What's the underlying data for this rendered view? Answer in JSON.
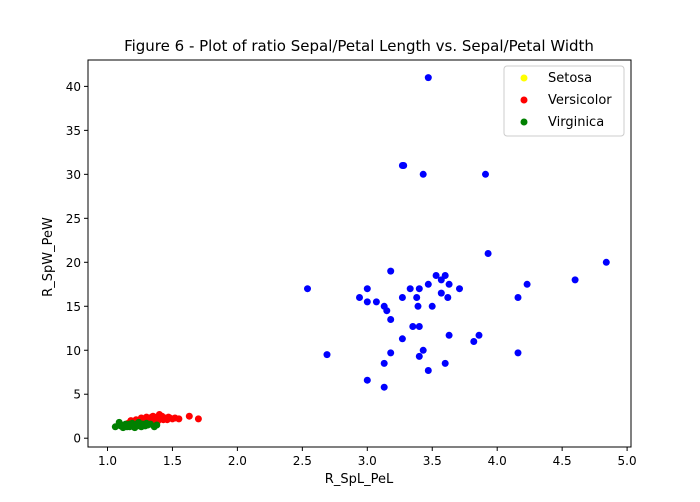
{
  "colors": {
    "setosa": "#0000ff",
    "versicolor": "#ff0000",
    "virginica": "#008000",
    "axis": "#000000",
    "legend_border": "#cccccc"
  },
  "chart_data": {
    "type": "scatter",
    "title": "Figure 6 - Plot of ratio Sepal/Petal Length vs. Sepal/Petal Width",
    "xlabel": "R_SpL_PeL",
    "ylabel": "R_SpW_PeW",
    "xlim": [
      0.85,
      5.03
    ],
    "ylim": [
      -1.0,
      43.0
    ],
    "xticks": [
      1.0,
      1.5,
      2.0,
      2.5,
      3.0,
      3.5,
      4.0,
      4.5,
      5.0
    ],
    "xtick_labels": [
      "1.0",
      "1.5",
      "2.0",
      "2.5",
      "3.0",
      "3.5",
      "4.0",
      "4.5",
      "5.0"
    ],
    "yticks": [
      0,
      5,
      10,
      15,
      20,
      25,
      30,
      35,
      40
    ],
    "ytick_labels": [
      "0",
      "5",
      "10",
      "15",
      "20",
      "25",
      "30",
      "35",
      "40"
    ],
    "grid": false,
    "legend_position": "top-right",
    "legend_marker_colors": [
      "#ffff00",
      "#ff0000",
      "#008000"
    ],
    "series": [
      {
        "name": "Setosa",
        "color": "#0000ff",
        "points": [
          [
            3.47,
            41.0
          ],
          [
            3.27,
            31.0
          ],
          [
            3.28,
            31.0
          ],
          [
            3.43,
            30.0
          ],
          [
            3.91,
            30.0
          ],
          [
            3.93,
            21.0
          ],
          [
            4.84,
            20.0
          ],
          [
            3.18,
            19.0
          ],
          [
            4.6,
            18.0
          ],
          [
            3.53,
            18.5
          ],
          [
            3.57,
            18.0
          ],
          [
            3.6,
            18.5
          ],
          [
            2.54,
            17.0
          ],
          [
            3.0,
            17.0
          ],
          [
            3.33,
            17.0
          ],
          [
            3.4,
            17.0
          ],
          [
            3.47,
            17.5
          ],
          [
            3.63,
            17.5
          ],
          [
            3.71,
            17.0
          ],
          [
            4.23,
            17.5
          ],
          [
            2.94,
            16.0
          ],
          [
            3.27,
            16.0
          ],
          [
            3.38,
            16.0
          ],
          [
            3.57,
            16.5
          ],
          [
            3.62,
            16.0
          ],
          [
            4.16,
            16.0
          ],
          [
            3.0,
            15.5
          ],
          [
            3.07,
            15.5
          ],
          [
            3.13,
            15.0
          ],
          [
            3.39,
            15.0
          ],
          [
            3.5,
            15.0
          ],
          [
            3.15,
            14.5
          ],
          [
            3.18,
            13.5
          ],
          [
            3.35,
            12.7
          ],
          [
            3.4,
            12.7
          ],
          [
            3.27,
            11.3
          ],
          [
            3.63,
            11.7
          ],
          [
            3.86,
            11.7
          ],
          [
            3.82,
            11.0
          ],
          [
            2.69,
            9.5
          ],
          [
            3.18,
            9.7
          ],
          [
            3.43,
            10.0
          ],
          [
            3.4,
            9.3
          ],
          [
            4.16,
            9.7
          ],
          [
            3.13,
            8.5
          ],
          [
            3.6,
            8.5
          ],
          [
            3.47,
            7.7
          ],
          [
            3.0,
            6.6
          ],
          [
            3.13,
            5.8
          ]
        ]
      },
      {
        "name": "Versicolor",
        "color": "#ff0000",
        "points": [
          [
            1.7,
            2.2
          ],
          [
            1.63,
            2.5
          ],
          [
            1.55,
            2.2
          ],
          [
            1.52,
            2.3
          ],
          [
            1.5,
            2.2
          ],
          [
            1.48,
            2.3
          ],
          [
            1.46,
            2.1
          ],
          [
            1.45,
            2.3
          ],
          [
            1.42,
            2.5
          ],
          [
            1.41,
            2.2
          ],
          [
            1.4,
            2.7
          ],
          [
            1.39,
            2.0
          ],
          [
            1.38,
            2.4
          ],
          [
            1.37,
            1.9
          ],
          [
            1.36,
            2.2
          ],
          [
            1.35,
            2.5
          ],
          [
            1.34,
            2.0
          ],
          [
            1.33,
            2.3
          ],
          [
            1.32,
            1.8
          ],
          [
            1.31,
            2.2
          ],
          [
            1.3,
            2.4
          ],
          [
            1.29,
            2.0
          ],
          [
            1.28,
            1.7
          ],
          [
            1.27,
            2.1
          ],
          [
            1.26,
            2.3
          ],
          [
            1.25,
            2.0
          ],
          [
            1.23,
            1.8
          ],
          [
            1.22,
            2.1
          ],
          [
            1.2,
            1.9
          ],
          [
            1.18,
            2.0
          ],
          [
            1.16,
            1.7
          ],
          [
            1.43,
            2.1
          ],
          [
            1.47,
            2.4
          ],
          [
            1.34,
            2.4
          ],
          [
            1.28,
            2.2
          ]
        ]
      },
      {
        "name": "Virginica",
        "color": "#008000",
        "points": [
          [
            1.06,
            1.3
          ],
          [
            1.09,
            1.8
          ],
          [
            1.1,
            1.4
          ],
          [
            1.12,
            1.2
          ],
          [
            1.13,
            1.5
          ],
          [
            1.14,
            1.6
          ],
          [
            1.15,
            1.3
          ],
          [
            1.16,
            1.5
          ],
          [
            1.17,
            1.6
          ],
          [
            1.18,
            1.4
          ],
          [
            1.19,
            1.7
          ],
          [
            1.2,
            1.3
          ],
          [
            1.21,
            1.5
          ],
          [
            1.22,
            1.6
          ],
          [
            1.23,
            1.4
          ],
          [
            1.24,
            1.8
          ],
          [
            1.25,
            1.5
          ],
          [
            1.26,
            1.3
          ],
          [
            1.27,
            1.6
          ],
          [
            1.28,
            1.5
          ],
          [
            1.29,
            1.4
          ],
          [
            1.3,
            1.7
          ],
          [
            1.31,
            1.5
          ],
          [
            1.33,
            1.6
          ],
          [
            1.36,
            1.3
          ],
          [
            1.38,
            1.5
          ],
          [
            1.17,
            1.3
          ],
          [
            1.21,
            1.2
          ]
        ]
      }
    ]
  }
}
